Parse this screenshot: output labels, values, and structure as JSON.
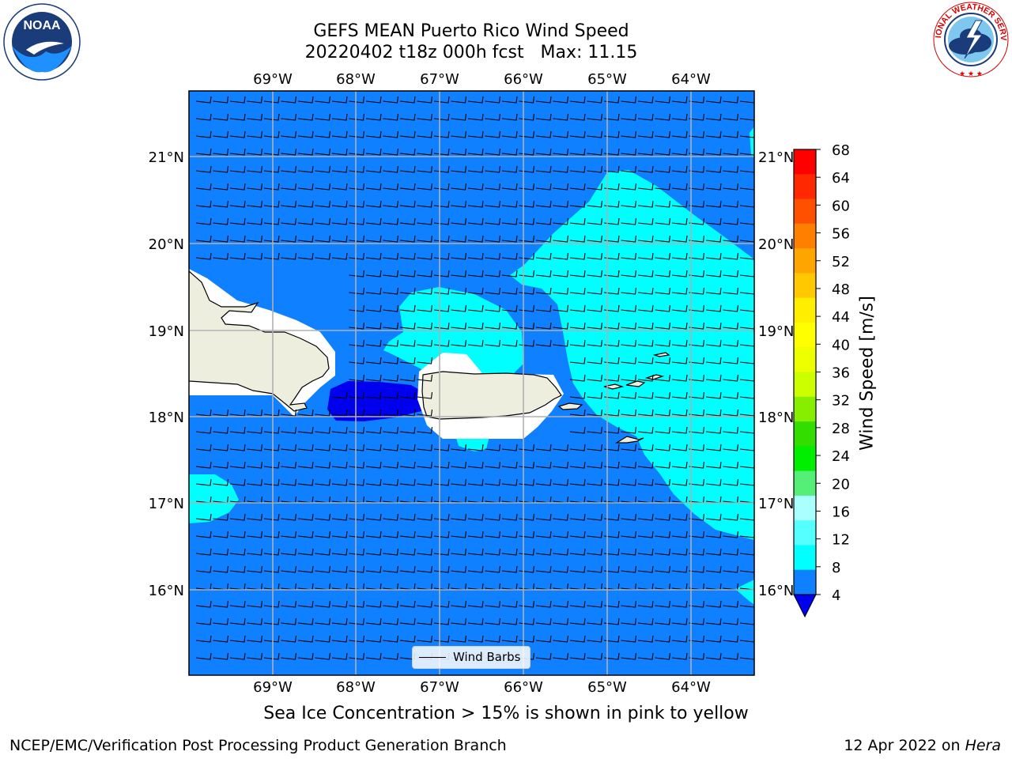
{
  "header": {
    "title_line1": "GEFS MEAN Puerto Rico Wind Speed",
    "title_line2": "20220402 t18z 000h fcst   Max: 11.15"
  },
  "logos": {
    "left": {
      "name": "noaa-logo",
      "text": "NOAA",
      "ring_text": "NATIONAL OCEANIC AND ATMOSPHERIC ADMINISTRATION · U.S. DEPARTMENT OF COMMERCE"
    },
    "right": {
      "name": "nws-logo",
      "ring_text": "NATIONAL WEATHER SERVICE"
    }
  },
  "map": {
    "lon_labels": [
      "69°W",
      "68°W",
      "67°W",
      "66°W",
      "65°W",
      "64°W"
    ],
    "lat_labels": [
      "21°N",
      "20°N",
      "19°N",
      "18°N",
      "17°N",
      "16°N"
    ],
    "colors": {
      "ocean_lt8": "#0f80ff",
      "band_4": "#0000ee",
      "band_8_12": "#00ffff",
      "land": "#eeeede"
    },
    "legend": {
      "label": "Wind Barbs"
    }
  },
  "colorbar": {
    "label": "Wind Speed [m/s]",
    "ticks": [
      "68",
      "64",
      "60",
      "56",
      "52",
      "48",
      "44",
      "40",
      "36",
      "32",
      "28",
      "24",
      "20",
      "16",
      "12",
      "8",
      "4"
    ],
    "colors": [
      "#ff0000",
      "#ff2800",
      "#ff5000",
      "#ff7f00",
      "#ffa500",
      "#ffc800",
      "#ffee00",
      "#ffff00",
      "#eeff00",
      "#ccff00",
      "#88ee00",
      "#33dd00",
      "#00ee00",
      "#55ee77",
      "#aaffff",
      "#55ffff",
      "#00ffff",
      "#0f80ff",
      "#0000ee"
    ]
  },
  "caption": "Sea Ice Concentration > 15% is shown in pink to yellow",
  "footer": {
    "left": "NCEP/EMC/Verification Post Processing Product Generation Branch",
    "right_date": "12 Apr 2022 on ",
    "right_machine": "Hera"
  }
}
